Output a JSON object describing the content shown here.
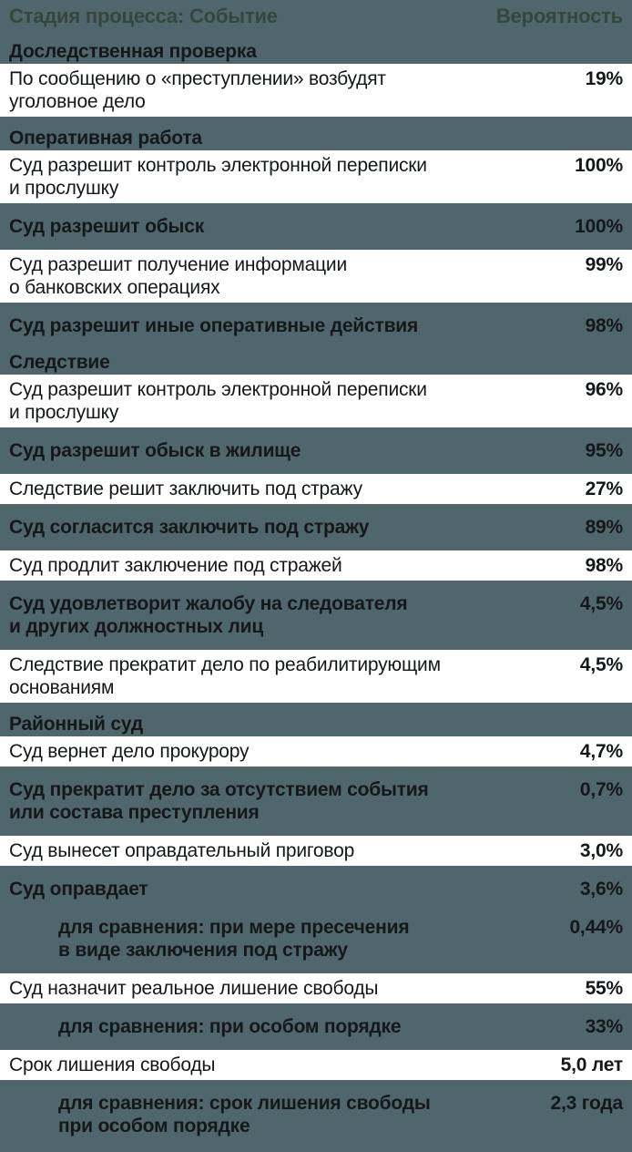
{
  "page": {
    "background_color": "#4F666D",
    "row_white_bg": "#FFFFFF",
    "text_color": "#14181A",
    "header_text_color": "#35463F"
  },
  "header": {
    "stage_label": "Стадия процесса: Событие",
    "probability_label": "Вероятность"
  },
  "items": [
    {
      "type": "section",
      "title": "Доследственная проверка"
    },
    {
      "type": "row",
      "style": "white",
      "text": "По сообщению о «преступлении» возбудят\nуголовное дело",
      "value": "19%"
    },
    {
      "type": "section",
      "title": "Оперативная работа"
    },
    {
      "type": "row",
      "style": "white",
      "text": "Суд разрешит контроль электронной переписки\nи прослушку",
      "value": "100%"
    },
    {
      "type": "row",
      "style": "teal",
      "text": "Суд разрешит обыск",
      "value": "100%"
    },
    {
      "type": "row",
      "style": "white",
      "text": "Суд разрешит получение информации\nо банковских операциях",
      "value": "99%"
    },
    {
      "type": "row",
      "style": "teal",
      "text": "Суд разрешит иные оперативные действия",
      "value": "98%"
    },
    {
      "type": "section",
      "title": "Следствие"
    },
    {
      "type": "row",
      "style": "white",
      "text": "Суд разрешит контроль электронной переписки\nи прослушку",
      "value": "96%"
    },
    {
      "type": "row",
      "style": "teal",
      "text": "Суд разрешит обыск в жилище",
      "value": "95%"
    },
    {
      "type": "row",
      "style": "white",
      "text": "Следствие решит заключить под стражу",
      "value": "27%"
    },
    {
      "type": "row",
      "style": "teal",
      "text": "Суд согласится заключить под стражу",
      "value": "89%"
    },
    {
      "type": "row",
      "style": "white",
      "text": "Суд продлит заключение под стражей",
      "value": "98%"
    },
    {
      "type": "row",
      "style": "teal",
      "text": "Суд удовлетворит жалобу на следователя\nи других должностных лиц",
      "value": "4,5%"
    },
    {
      "type": "row",
      "style": "white",
      "text": "Следствие прекратит дело по реабилитирующим\nоснованиям",
      "value": "4,5%"
    },
    {
      "type": "section",
      "title": "Районный суд"
    },
    {
      "type": "row",
      "style": "white",
      "text": "Суд вернет дело прокурору",
      "value": "4,7%"
    },
    {
      "type": "row",
      "style": "teal",
      "text": "Суд прекратит дело за отсутствием события\nили состава преступления",
      "value": "0,7%"
    },
    {
      "type": "row",
      "style": "white",
      "text": "Суд вынесет оправдательный приговор",
      "value": "3,0%"
    },
    {
      "type": "row",
      "style": "teal",
      "text": "Суд оправдает",
      "value": "3,6%"
    },
    {
      "type": "row",
      "style": "teal",
      "indent": true,
      "text": "для сравнения: при мере пресечения\nв виде заключения под стражу",
      "value": "0,44%"
    },
    {
      "type": "row",
      "style": "white",
      "text": "Суд назначит реальное лишение свободы",
      "value": "55%"
    },
    {
      "type": "row",
      "style": "teal",
      "indent": true,
      "text": "для сравнения: при особом порядке",
      "value": "33%"
    },
    {
      "type": "row",
      "style": "white",
      "text": "Срок лишения свободы",
      "value": "5,0 лет"
    },
    {
      "type": "row",
      "style": "teal",
      "indent": true,
      "text": "для сравнения: срок лишения свободы\nпри особом порядке",
      "value": "2,3 года"
    }
  ],
  "chart_data": {
    "type": "table",
    "title": "Стадия процесса: Событие — Вероятность",
    "columns": [
      "Стадия процесса: Событие",
      "Вероятность"
    ],
    "sections": [
      {
        "title": "Доследственная проверка",
        "rows": [
          {
            "event": "По сообщению о «преступлении» возбудят уголовное дело",
            "probability": "19%"
          }
        ]
      },
      {
        "title": "Оперативная работа",
        "rows": [
          {
            "event": "Суд разрешит контроль электронной переписки и прослушку",
            "probability": "100%"
          },
          {
            "event": "Суд разрешит обыск",
            "probability": "100%"
          },
          {
            "event": "Суд разрешит получение информации о банковских операциях",
            "probability": "99%"
          },
          {
            "event": "Суд разрешит иные оперативные действия",
            "probability": "98%"
          }
        ]
      },
      {
        "title": "Следствие",
        "rows": [
          {
            "event": "Суд разрешит контроль электронной переписки и прослушку",
            "probability": "96%"
          },
          {
            "event": "Суд разрешит обыск в жилище",
            "probability": "95%"
          },
          {
            "event": "Следствие решит заключить под стражу",
            "probability": "27%"
          },
          {
            "event": "Суд согласится заключить под стражу",
            "probability": "89%"
          },
          {
            "event": "Суд продлит заключение под стражей",
            "probability": "98%"
          },
          {
            "event": "Суд удовлетворит жалобу на следователя и других должностных лиц",
            "probability": "4,5%"
          },
          {
            "event": "Следствие прекратит дело по реабилитирующим основаниям",
            "probability": "4,5%"
          }
        ]
      },
      {
        "title": "Районный суд",
        "rows": [
          {
            "event": "Суд вернет дело прокурору",
            "probability": "4,7%"
          },
          {
            "event": "Суд прекратит дело за отсутствием события или состава преступления",
            "probability": "0,7%"
          },
          {
            "event": "Суд вынесет оправдательный приговор",
            "probability": "3,0%"
          },
          {
            "event": "Суд оправдает",
            "probability": "3,6%"
          },
          {
            "event": "для сравнения: при мере пресечения в виде заключения под стражу",
            "probability": "0,44%",
            "comparison": true
          },
          {
            "event": "Суд назначит реальное лишение свободы",
            "probability": "55%"
          },
          {
            "event": "для сравнения: при особом порядке",
            "probability": "33%",
            "comparison": true
          },
          {
            "event": "Срок лишения свободы",
            "probability": "5,0 лет"
          },
          {
            "event": "для сравнения: срок лишения свободы при особом порядке",
            "probability": "2,3 года",
            "comparison": true
          }
        ]
      }
    ]
  }
}
